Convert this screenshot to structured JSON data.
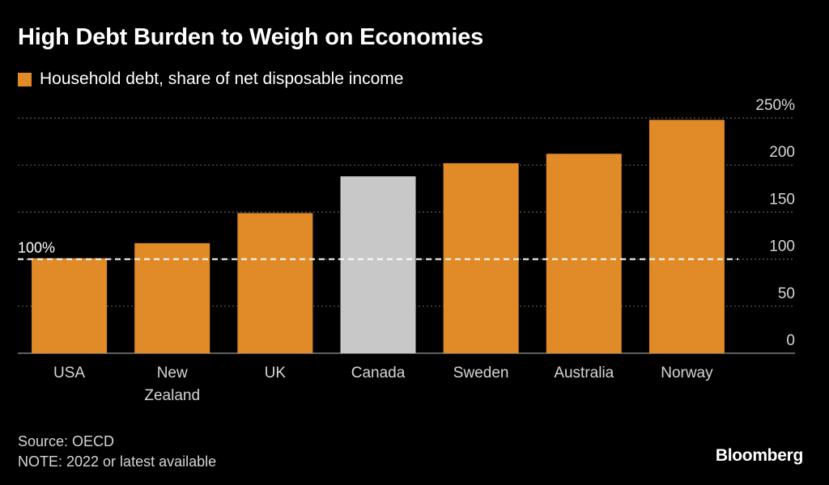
{
  "title": "High Debt Burden to Weigh on Economies",
  "legend": {
    "label": "Household debt, share of net disposable income",
    "color": "#e08b27"
  },
  "footer": {
    "source": "Source: OECD",
    "note": "NOTE: 2022 or latest available",
    "brand": "Bloomberg"
  },
  "chart_data": {
    "type": "bar",
    "title": "High Debt Burden to Weigh on Economies",
    "xlabel": "",
    "ylabel": "Household debt, share of net disposable income",
    "categories": [
      "USA",
      "New Zealand",
      "UK",
      "Canada",
      "Sweden",
      "Australia",
      "Norway"
    ],
    "category_lines": [
      [
        "USA"
      ],
      [
        "New",
        "Zealand"
      ],
      [
        "UK"
      ],
      [
        "Canada"
      ],
      [
        "Sweden"
      ],
      [
        "Australia"
      ],
      [
        "Norway"
      ]
    ],
    "series": [
      {
        "name": "Household debt, share of net disposable income",
        "values": [
          101,
          117,
          149,
          188,
          202,
          212,
          248
        ]
      }
    ],
    "bar_colors": [
      "#e08b27",
      "#e08b27",
      "#e08b27",
      "#c8c8c8",
      "#e08b27",
      "#e08b27",
      "#e08b27"
    ],
    "ylim": [
      0,
      250
    ],
    "y_ticks": [
      0,
      50,
      100,
      150,
      200,
      250
    ],
    "y_tick_labels": [
      "0",
      "50",
      "100",
      "150",
      "200",
      "250%"
    ],
    "y_axis_side": "right",
    "grid": true,
    "reference_line": {
      "value": 100,
      "label": "100%",
      "style": "dashed"
    }
  }
}
